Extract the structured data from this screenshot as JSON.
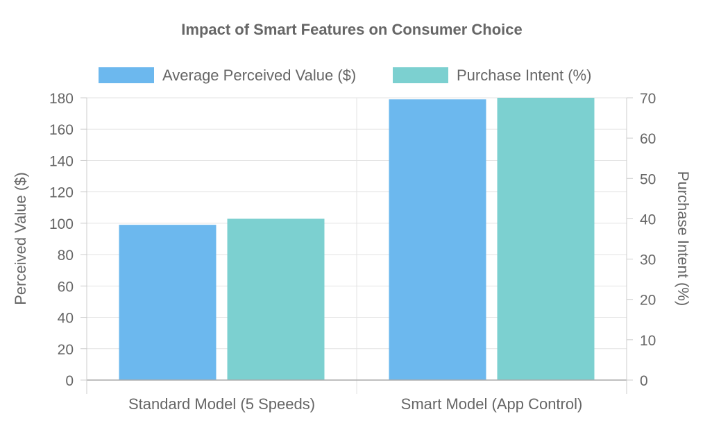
{
  "chart_data": {
    "type": "bar",
    "title": "Impact of Smart Features on Consumer Choice",
    "categories": [
      "Standard Model (5 Speeds)",
      "Smart Model (App Control)"
    ],
    "series": [
      {
        "name": "Average Perceived Value ($)",
        "values": [
          99,
          179
        ],
        "axis": "left",
        "color": "#6cb8ee"
      },
      {
        "name": "Purchase Intent (%)",
        "values": [
          40,
          72
        ],
        "axis": "right",
        "color": "#7cd0d0"
      }
    ],
    "ylabel": "Perceived Value ($)",
    "y2label": "Purchase Intent (%)",
    "ylim": [
      0,
      180
    ],
    "y2lim": [
      0,
      70
    ],
    "yticks": [
      0,
      20,
      40,
      60,
      80,
      100,
      120,
      140,
      160,
      180
    ],
    "y2ticks": [
      0,
      10,
      20,
      30,
      40,
      50,
      60,
      70
    ],
    "grid": true,
    "legend_position": "top-center"
  }
}
